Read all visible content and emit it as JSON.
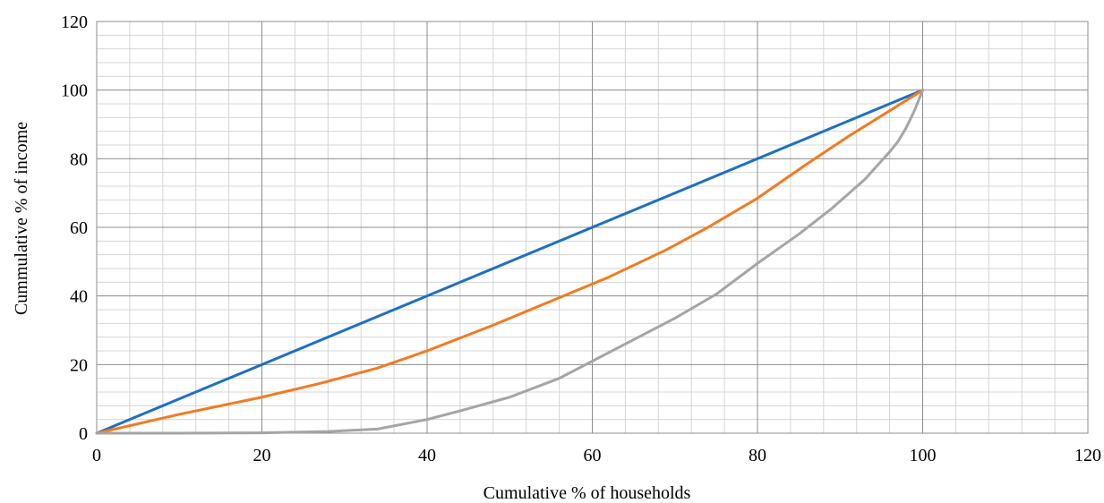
{
  "chart_data": {
    "type": "line",
    "title": "",
    "xlabel": "Cumulative % of households",
    "ylabel": "Cummulative % of income",
    "xlim": [
      0,
      120
    ],
    "ylim": [
      0,
      120
    ],
    "xticks": [
      0,
      20,
      40,
      60,
      80,
      100,
      120
    ],
    "yticks": [
      0,
      20,
      40,
      60,
      80,
      100,
      120
    ],
    "grid": true,
    "minor_grid": true,
    "legend": "none",
    "series": [
      {
        "color": "#1F6FC4",
        "points": [
          [
            0,
            0
          ],
          [
            100,
            100
          ]
        ]
      },
      {
        "color": "#F47A20",
        "points": [
          [
            0,
            0
          ],
          [
            10,
            5.5
          ],
          [
            20,
            10.5
          ],
          [
            27,
            14.5
          ],
          [
            34,
            19
          ],
          [
            40,
            24
          ],
          [
            48,
            31.5
          ],
          [
            56,
            39.5
          ],
          [
            62,
            45.5
          ],
          [
            69,
            53.5
          ],
          [
            74,
            60
          ],
          [
            80,
            68.5
          ],
          [
            86,
            78.5
          ],
          [
            91,
            86.5
          ],
          [
            96,
            94
          ],
          [
            100,
            100
          ]
        ]
      },
      {
        "color": "#A5A5A5",
        "points": [
          [
            0,
            0
          ],
          [
            10,
            0
          ],
          [
            20,
            0.1
          ],
          [
            28,
            0.5
          ],
          [
            34,
            1.2
          ],
          [
            40,
            4
          ],
          [
            44,
            6.5
          ],
          [
            50,
            10.5
          ],
          [
            56,
            16
          ],
          [
            60,
            21
          ],
          [
            64,
            26
          ],
          [
            70,
            33.5
          ],
          [
            75,
            40.5
          ],
          [
            80,
            49.5
          ],
          [
            85,
            58
          ],
          [
            89,
            65.5
          ],
          [
            93,
            74
          ],
          [
            96,
            82
          ],
          [
            97,
            85
          ],
          [
            98,
            89
          ],
          [
            99,
            94
          ],
          [
            100,
            100
          ]
        ]
      }
    ]
  }
}
